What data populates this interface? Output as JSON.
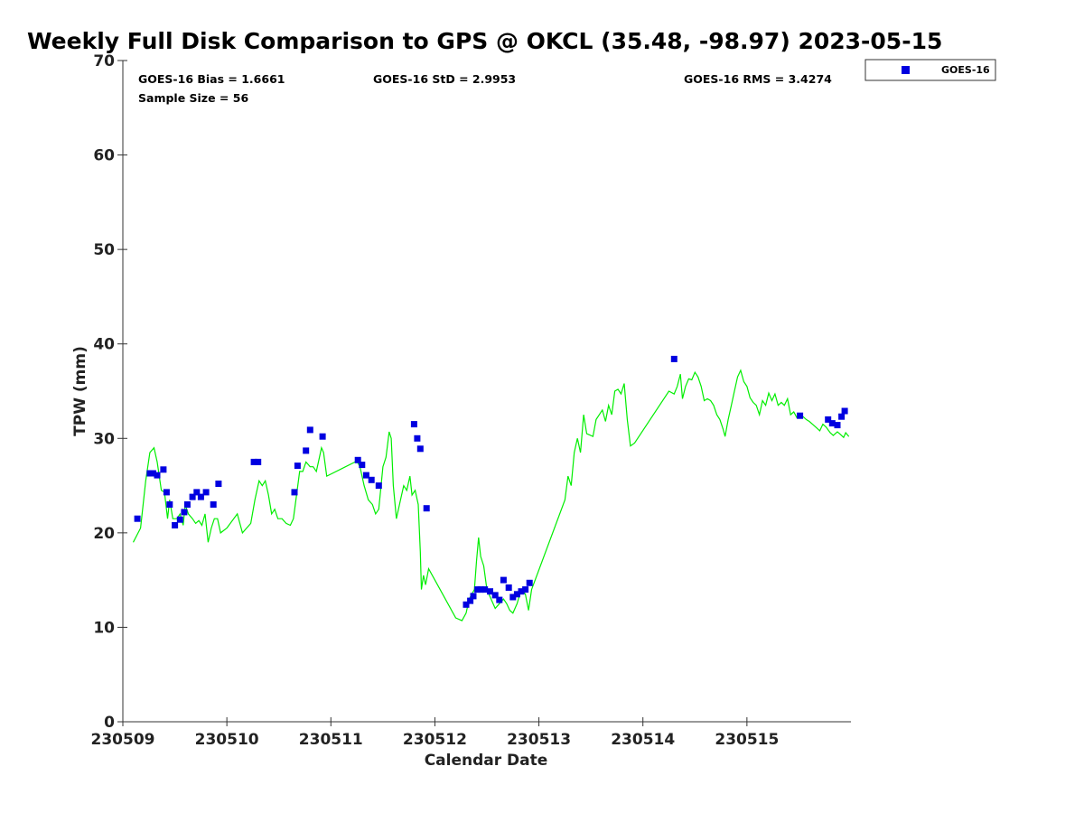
{
  "chart_data": {
    "type": "scatter",
    "title": "Weekly Full Disk Comparison to GPS @ OKCL (35.48, -98.97) 2023-05-15",
    "xlabel": "Calendar Date",
    "ylabel": "TPW (mm)",
    "xlim": [
      230509,
      230516
    ],
    "ylim": [
      0,
      70
    ],
    "x_tick_labels": [
      "230509",
      "230510",
      "230511",
      "230512",
      "230513",
      "230514",
      "230515"
    ],
    "y_ticks": [
      0,
      10,
      20,
      30,
      40,
      50,
      60,
      70
    ],
    "grid": false,
    "legend_position": "top-right",
    "stats": {
      "bias": "GOES-16 Bias = 1.6661",
      "std": "GOES-16 StD = 2.9953",
      "rms": "GOES-16 RMS = 3.4274",
      "sample": "Sample Size = 56"
    },
    "series": [
      {
        "name": "GOES-16",
        "kind": "scatter",
        "color": "#0000e0",
        "points": [
          [
            230509.14,
            21.5
          ],
          [
            230509.26,
            26.3
          ],
          [
            230509.29,
            26.3
          ],
          [
            230509.33,
            26.1
          ],
          [
            230509.39,
            26.7
          ],
          [
            230509.42,
            24.3
          ],
          [
            230509.45,
            23.0
          ],
          [
            230509.5,
            20.8
          ],
          [
            230509.55,
            21.4
          ],
          [
            230509.59,
            22.2
          ],
          [
            230509.62,
            23.0
          ],
          [
            230509.67,
            23.8
          ],
          [
            230509.71,
            24.3
          ],
          [
            230509.75,
            23.8
          ],
          [
            230509.8,
            24.3
          ],
          [
            230509.87,
            23.0
          ],
          [
            230509.92,
            25.2
          ],
          [
            230510.26,
            27.5
          ],
          [
            230510.3,
            27.5
          ],
          [
            230510.65,
            24.3
          ],
          [
            230510.68,
            27.1
          ],
          [
            230510.76,
            28.7
          ],
          [
            230510.8,
            30.9
          ],
          [
            230510.92,
            30.2
          ],
          [
            230511.26,
            27.7
          ],
          [
            230511.3,
            27.2
          ],
          [
            230511.34,
            26.1
          ],
          [
            230511.39,
            25.6
          ],
          [
            230511.46,
            25.0
          ],
          [
            230511.8,
            31.5
          ],
          [
            230511.83,
            30.0
          ],
          [
            230511.86,
            28.9
          ],
          [
            230511.92,
            22.6
          ],
          [
            230512.3,
            12.4
          ],
          [
            230512.34,
            12.8
          ],
          [
            230512.37,
            13.3
          ],
          [
            230512.41,
            14.0
          ],
          [
            230512.44,
            14.0
          ],
          [
            230512.48,
            14.0
          ],
          [
            230512.53,
            13.8
          ],
          [
            230512.58,
            13.4
          ],
          [
            230512.62,
            12.9
          ],
          [
            230512.66,
            15.0
          ],
          [
            230512.71,
            14.2
          ],
          [
            230512.75,
            13.2
          ],
          [
            230512.79,
            13.5
          ],
          [
            230512.83,
            13.8
          ],
          [
            230512.87,
            14.0
          ],
          [
            230512.91,
            14.7
          ],
          [
            230514.3,
            38.4
          ],
          [
            230515.51,
            32.4
          ],
          [
            230515.78,
            32.0
          ],
          [
            230515.82,
            31.6
          ],
          [
            230515.87,
            31.4
          ],
          [
            230515.91,
            32.3
          ],
          [
            230515.94,
            32.9
          ]
        ]
      },
      {
        "name": "",
        "kind": "line",
        "color": "#00ee00",
        "points": [
          [
            230509.1,
            19.0
          ],
          [
            230509.17,
            20.5
          ],
          [
            230509.22,
            25.5
          ],
          [
            230509.26,
            28.5
          ],
          [
            230509.3,
            29.0
          ],
          [
            230509.33,
            27.5
          ],
          [
            230509.37,
            24.5
          ],
          [
            230509.4,
            24.3
          ],
          [
            230509.43,
            21.5
          ],
          [
            230509.45,
            23.5
          ],
          [
            230509.48,
            21.5
          ],
          [
            230509.52,
            21.5
          ],
          [
            230509.55,
            22.0
          ],
          [
            230509.58,
            20.8
          ],
          [
            230509.6,
            23.0
          ],
          [
            230509.63,
            22.0
          ],
          [
            230509.67,
            21.5
          ],
          [
            230509.7,
            21.0
          ],
          [
            230509.73,
            21.3
          ],
          [
            230509.76,
            20.8
          ],
          [
            230509.79,
            22.0
          ],
          [
            230509.82,
            19.0
          ],
          [
            230509.85,
            20.5
          ],
          [
            230509.88,
            21.5
          ],
          [
            230509.91,
            21.5
          ],
          [
            230509.94,
            20.0
          ],
          [
            230510.0,
            20.5
          ],
          [
            230510.1,
            22.0
          ],
          [
            230510.15,
            20.0
          ],
          [
            230510.23,
            21.0
          ],
          [
            230510.27,
            23.5
          ],
          [
            230510.31,
            25.5
          ],
          [
            230510.34,
            25.0
          ],
          [
            230510.37,
            25.5
          ],
          [
            230510.4,
            24.0
          ],
          [
            230510.43,
            22.0
          ],
          [
            230510.46,
            22.5
          ],
          [
            230510.49,
            21.5
          ],
          [
            230510.53,
            21.5
          ],
          [
            230510.57,
            21.0
          ],
          [
            230510.61,
            20.8
          ],
          [
            230510.64,
            21.5
          ],
          [
            230510.67,
            24.0
          ],
          [
            230510.7,
            26.5
          ],
          [
            230510.73,
            26.5
          ],
          [
            230510.76,
            27.5
          ],
          [
            230510.8,
            27.0
          ],
          [
            230510.83,
            27.0
          ],
          [
            230510.86,
            26.5
          ],
          [
            230510.88,
            27.5
          ],
          [
            230510.91,
            29.0
          ],
          [
            230510.93,
            28.5
          ],
          [
            230510.96,
            26.0
          ],
          [
            230511.25,
            27.6
          ],
          [
            230511.28,
            27.0
          ],
          [
            230511.32,
            25.0
          ],
          [
            230511.36,
            23.5
          ],
          [
            230511.4,
            23.0
          ],
          [
            230511.43,
            22.0
          ],
          [
            230511.46,
            22.5
          ],
          [
            230511.5,
            27.0
          ],
          [
            230511.53,
            28.0
          ],
          [
            230511.56,
            30.7
          ],
          [
            230511.58,
            30.0
          ],
          [
            230511.6,
            25.0
          ],
          [
            230511.63,
            21.5
          ],
          [
            230511.67,
            23.5
          ],
          [
            230511.7,
            25.0
          ],
          [
            230511.73,
            24.5
          ],
          [
            230511.76,
            26.0
          ],
          [
            230511.78,
            24.0
          ],
          [
            230511.81,
            24.5
          ],
          [
            230511.84,
            23.0
          ],
          [
            230511.86,
            18.0
          ],
          [
            230511.87,
            14.0
          ],
          [
            230511.89,
            15.5
          ],
          [
            230511.91,
            14.5
          ],
          [
            230511.94,
            16.2
          ],
          [
            230512.0,
            15.0
          ],
          [
            230512.2,
            11.0
          ],
          [
            230512.26,
            10.7
          ],
          [
            230512.3,
            11.5
          ],
          [
            230512.33,
            13.0
          ],
          [
            230512.38,
            14.0
          ],
          [
            230512.4,
            17.0
          ],
          [
            230512.42,
            19.5
          ],
          [
            230512.44,
            17.5
          ],
          [
            230512.47,
            16.5
          ],
          [
            230512.5,
            14.0
          ],
          [
            230512.54,
            13.0
          ],
          [
            230512.58,
            12.0
          ],
          [
            230512.62,
            12.5
          ],
          [
            230512.66,
            13.0
          ],
          [
            230512.69,
            12.5
          ],
          [
            230512.72,
            11.8
          ],
          [
            230512.75,
            11.5
          ],
          [
            230512.79,
            12.5
          ],
          [
            230512.83,
            14.0
          ],
          [
            230512.87,
            13.5
          ],
          [
            230512.9,
            11.8
          ],
          [
            230512.93,
            14.0
          ],
          [
            230513.25,
            23.5
          ],
          [
            230513.28,
            26.0
          ],
          [
            230513.31,
            25.0
          ],
          [
            230513.34,
            28.5
          ],
          [
            230513.37,
            30.0
          ],
          [
            230513.4,
            28.5
          ],
          [
            230513.43,
            32.5
          ],
          [
            230513.46,
            30.5
          ],
          [
            230513.52,
            30.2
          ],
          [
            230513.55,
            32.0
          ],
          [
            230513.58,
            32.5
          ],
          [
            230513.61,
            33.0
          ],
          [
            230513.64,
            31.8
          ],
          [
            230513.67,
            33.5
          ],
          [
            230513.7,
            32.5
          ],
          [
            230513.73,
            35.0
          ],
          [
            230513.76,
            35.2
          ],
          [
            230513.79,
            34.7
          ],
          [
            230513.82,
            35.8
          ],
          [
            230513.85,
            32.0
          ],
          [
            230513.88,
            29.2
          ],
          [
            230513.92,
            29.5
          ],
          [
            230514.25,
            35.0
          ],
          [
            230514.3,
            34.7
          ],
          [
            230514.33,
            35.5
          ],
          [
            230514.36,
            36.8
          ],
          [
            230514.38,
            34.2
          ],
          [
            230514.41,
            35.5
          ],
          [
            230514.44,
            36.3
          ],
          [
            230514.47,
            36.2
          ],
          [
            230514.5,
            37.0
          ],
          [
            230514.53,
            36.5
          ],
          [
            230514.56,
            35.5
          ],
          [
            230514.59,
            34.0
          ],
          [
            230514.62,
            34.2
          ],
          [
            230514.65,
            34.0
          ],
          [
            230514.68,
            33.5
          ],
          [
            230514.71,
            32.5
          ],
          [
            230514.74,
            32.0
          ],
          [
            230514.77,
            31.0
          ],
          [
            230514.79,
            30.2
          ],
          [
            230514.82,
            32.0
          ],
          [
            230514.85,
            33.5
          ],
          [
            230514.88,
            35.0
          ],
          [
            230514.91,
            36.5
          ],
          [
            230514.94,
            37.2
          ],
          [
            230514.97,
            36.0
          ],
          [
            230515.0,
            35.5
          ],
          [
            230515.03,
            34.3
          ],
          [
            230515.06,
            33.8
          ],
          [
            230515.09,
            33.5
          ],
          [
            230515.12,
            32.5
          ],
          [
            230515.15,
            34.0
          ],
          [
            230515.18,
            33.5
          ],
          [
            230515.21,
            34.8
          ],
          [
            230515.24,
            34.0
          ],
          [
            230515.27,
            34.7
          ],
          [
            230515.3,
            33.5
          ],
          [
            230515.33,
            33.8
          ],
          [
            230515.36,
            33.5
          ],
          [
            230515.39,
            34.2
          ],
          [
            230515.42,
            32.5
          ],
          [
            230515.45,
            32.8
          ],
          [
            230515.48,
            32.2
          ],
          [
            230515.51,
            32.5
          ],
          [
            230515.54,
            32.3
          ],
          [
            230515.57,
            32.0
          ],
          [
            230515.6,
            31.8
          ],
          [
            230515.63,
            31.5
          ],
          [
            230515.66,
            31.2
          ],
          [
            230515.7,
            30.8
          ],
          [
            230515.73,
            31.5
          ],
          [
            230515.76,
            31.2
          ],
          [
            230515.8,
            30.6
          ],
          [
            230515.83,
            30.3
          ],
          [
            230515.87,
            30.7
          ],
          [
            230515.9,
            30.4
          ],
          [
            230515.93,
            30.1
          ],
          [
            230515.95,
            30.6
          ],
          [
            230515.98,
            30.2
          ]
        ]
      }
    ]
  }
}
